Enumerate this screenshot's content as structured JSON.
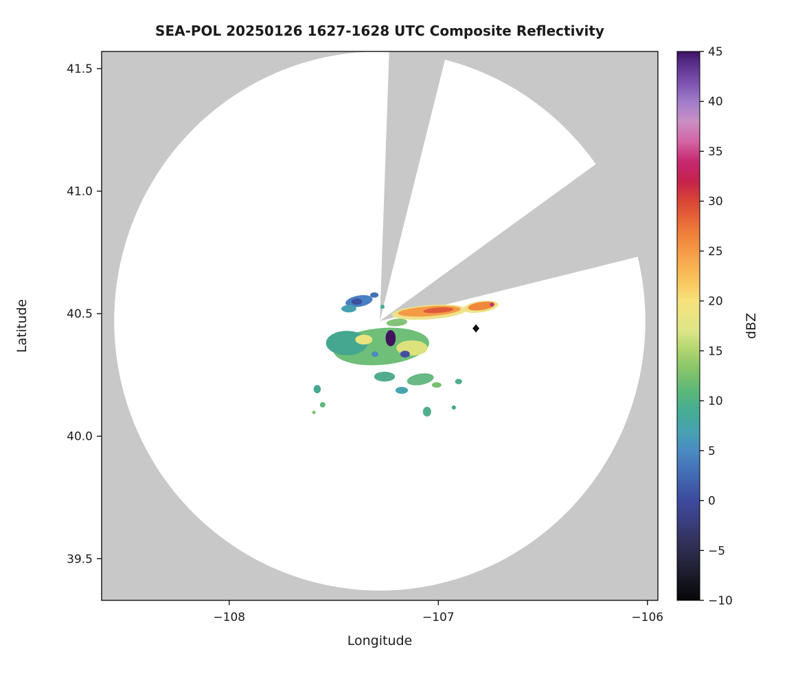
{
  "page": {
    "background": "#ffffff"
  },
  "chart_data": {
    "type": "heatmap",
    "title": "SEA-POL 20250126 1627-1628 UTC Composite Reflectivity",
    "xlabel": "Longitude",
    "ylabel": "Latitude",
    "xlim": [
      -108.61,
      -105.95
    ],
    "ylim": [
      39.33,
      41.57
    ],
    "grid": false,
    "nodata_color": "#c8c8c8",
    "coverage_color": "#ffffff",
    "xticks": [
      {
        "value": -108,
        "label": "−108"
      },
      {
        "value": -107,
        "label": "−107"
      },
      {
        "value": -106,
        "label": "−106"
      }
    ],
    "yticks": [
      {
        "value": 39.5,
        "label": "39.5"
      },
      {
        "value": 40.0,
        "label": "40.0"
      },
      {
        "value": 40.5,
        "label": "40.5"
      },
      {
        "value": 41.0,
        "label": "41.0"
      },
      {
        "value": 41.5,
        "label": "41.5"
      }
    ],
    "coverage": {
      "center_lon": -107.28,
      "center_lat": 40.47,
      "radius_lon_deg": 1.27,
      "radius_lat_deg": 1.1,
      "blocked_sectors": [
        {
          "from_az": 2,
          "to_az": 14
        },
        {
          "from_az": 54,
          "to_az": 76
        }
      ]
    },
    "station_marker": {
      "lon": -106.82,
      "lat": 40.44,
      "shape": "diamond",
      "color": "#111111"
    },
    "colorbar": {
      "label": "dBZ",
      "min": -10,
      "max": 45,
      "ticks": [
        {
          "value": -10,
          "label": "−10"
        },
        {
          "value": -5,
          "label": "−5"
        },
        {
          "value": 0,
          "label": "0"
        },
        {
          "value": 5,
          "label": "5"
        },
        {
          "value": 10,
          "label": "10"
        },
        {
          "value": 15,
          "label": "15"
        },
        {
          "value": 20,
          "label": "20"
        },
        {
          "value": 25,
          "label": "25"
        },
        {
          "value": 30,
          "label": "30"
        },
        {
          "value": 35,
          "label": "35"
        },
        {
          "value": 40,
          "label": "40"
        },
        {
          "value": 45,
          "label": "45"
        }
      ],
      "colormap": [
        {
          "v": 45,
          "color": "#3b1261"
        },
        {
          "v": 44,
          "color": "#552a85"
        },
        {
          "v": 42,
          "color": "#7a4fae"
        },
        {
          "v": 40,
          "color": "#a07cc8"
        },
        {
          "v": 38,
          "color": "#c98fc4"
        },
        {
          "v": 36,
          "color": "#d465a4"
        },
        {
          "v": 34,
          "color": "#c52a70"
        },
        {
          "v": 32,
          "color": "#c5224c"
        },
        {
          "v": 30,
          "color": "#d84636"
        },
        {
          "v": 27,
          "color": "#ee7a39"
        },
        {
          "v": 25,
          "color": "#f59b45"
        },
        {
          "v": 22,
          "color": "#f8c55e"
        },
        {
          "v": 20,
          "color": "#f7e27c"
        },
        {
          "v": 17,
          "color": "#dce689"
        },
        {
          "v": 15,
          "color": "#aed46e"
        },
        {
          "v": 13,
          "color": "#84c46a"
        },
        {
          "v": 11,
          "color": "#5cb877"
        },
        {
          "v": 9,
          "color": "#45ad93"
        },
        {
          "v": 7,
          "color": "#47a2b0"
        },
        {
          "v": 5,
          "color": "#4a8bc2"
        },
        {
          "v": 3,
          "color": "#4370b5"
        },
        {
          "v": 0,
          "color": "#3d4a9e"
        },
        {
          "v": -2,
          "color": "#3a3f80"
        },
        {
          "v": -4,
          "color": "#32325c"
        },
        {
          "v": -6,
          "color": "#262640"
        },
        {
          "v": -8,
          "color": "#161622"
        },
        {
          "v": -10,
          "color": "#070707"
        }
      ]
    },
    "echoes": [
      {
        "lon": -107.043,
        "lat": 40.506,
        "w": 0.36,
        "h": 0.058,
        "rot": -4,
        "dbz": 18,
        "color": "#eee289"
      },
      {
        "lon": -106.797,
        "lat": 40.528,
        "w": 0.17,
        "h": 0.046,
        "rot": -8,
        "dbz": 18,
        "color": "#eee289"
      },
      {
        "lon": -107.273,
        "lat": 40.366,
        "w": 0.46,
        "h": 0.15,
        "rot": -5,
        "dbz": 10,
        "color": "#6fbf78"
      },
      {
        "lon": -107.437,
        "lat": 40.38,
        "w": 0.2,
        "h": 0.1,
        "rot": 0,
        "dbz": 8,
        "color": "#45a78f"
      },
      {
        "lon": -107.126,
        "lat": 40.36,
        "w": 0.15,
        "h": 0.062,
        "rot": 0,
        "dbz": 16,
        "color": "#dde27d"
      },
      {
        "lon": -107.356,
        "lat": 40.394,
        "w": 0.082,
        "h": 0.04,
        "rot": 0,
        "dbz": 17,
        "color": "#e9e47e"
      },
      {
        "lon": -107.198,
        "lat": 40.464,
        "w": 0.1,
        "h": 0.03,
        "rot": -5,
        "dbz": 12,
        "color": "#84c27a"
      },
      {
        "lon": -107.379,
        "lat": 40.551,
        "w": 0.131,
        "h": 0.046,
        "rot": -10,
        "dbz": 4,
        "color": "#4a7fc1"
      },
      {
        "lon": -107.39,
        "lat": 40.549,
        "w": 0.05,
        "h": 0.026,
        "rot": 0,
        "dbz": 0,
        "color": "#3d4f9f"
      },
      {
        "lon": -107.428,
        "lat": 40.52,
        "w": 0.072,
        "h": 0.03,
        "rot": 0,
        "dbz": 7,
        "color": "#47a2b0"
      },
      {
        "lon": -107.306,
        "lat": 40.576,
        "w": 0.04,
        "h": 0.022,
        "rot": 0,
        "dbz": 3,
        "color": "#4370b5"
      },
      {
        "lon": -107.267,
        "lat": 40.528,
        "w": 0.02,
        "h": 0.017,
        "rot": 0,
        "dbz": 9,
        "color": "#45ad93"
      },
      {
        "lon": -107.043,
        "lat": 40.51,
        "w": 0.3,
        "h": 0.04,
        "rot": -4,
        "dbz": 25,
        "color": "#f59b45"
      },
      {
        "lon": -107.0,
        "lat": 40.514,
        "w": 0.145,
        "h": 0.022,
        "rot": -4,
        "dbz": 29,
        "color": "#e0593a"
      },
      {
        "lon": -106.794,
        "lat": 40.531,
        "w": 0.13,
        "h": 0.033,
        "rot": -8,
        "dbz": 26,
        "color": "#f0883c"
      },
      {
        "lon": -106.744,
        "lat": 40.537,
        "w": 0.02,
        "h": 0.016,
        "rot": 0,
        "dbz": 33,
        "color": "#c2356e"
      },
      {
        "lon": -107.159,
        "lat": 40.335,
        "w": 0.046,
        "h": 0.028,
        "rot": 0,
        "dbz": 1,
        "color": "#44509e"
      },
      {
        "lon": -107.303,
        "lat": 40.335,
        "w": 0.033,
        "h": 0.022,
        "rot": 0,
        "dbz": 5,
        "color": "#4a8bc2"
      },
      {
        "lon": -107.257,
        "lat": 40.243,
        "w": 0.1,
        "h": 0.04,
        "rot": 0,
        "dbz": 9,
        "color": "#52ad8d"
      },
      {
        "lon": -107.086,
        "lat": 40.232,
        "w": 0.13,
        "h": 0.046,
        "rot": -10,
        "dbz": 11,
        "color": "#68b984"
      },
      {
        "lon": -107.175,
        "lat": 40.187,
        "w": 0.06,
        "h": 0.028,
        "rot": 0,
        "dbz": 7,
        "color": "#47a2b0"
      },
      {
        "lon": -107.008,
        "lat": 40.209,
        "w": 0.046,
        "h": 0.022,
        "rot": 0,
        "dbz": 12,
        "color": "#79c06f"
      },
      {
        "lon": -107.054,
        "lat": 40.1,
        "w": 0.04,
        "h": 0.04,
        "rot": 0,
        "dbz": 9,
        "color": "#52ad8d"
      },
      {
        "lon": -107.579,
        "lat": 40.192,
        "w": 0.034,
        "h": 0.034,
        "rot": 0,
        "dbz": 8,
        "color": "#45a78f"
      },
      {
        "lon": -107.553,
        "lat": 40.128,
        "w": 0.026,
        "h": 0.022,
        "rot": 0,
        "dbz": 10,
        "color": "#5cb877"
      },
      {
        "lon": -107.595,
        "lat": 40.097,
        "w": 0.016,
        "h": 0.014,
        "rot": 0,
        "dbz": 12,
        "color": "#7cc06f"
      },
      {
        "lon": -106.903,
        "lat": 40.223,
        "w": 0.034,
        "h": 0.022,
        "rot": 0,
        "dbz": 9,
        "color": "#52ad8d"
      },
      {
        "lon": -106.926,
        "lat": 40.117,
        "w": 0.02,
        "h": 0.017,
        "rot": 0,
        "dbz": 8,
        "color": "#45a78f"
      },
      {
        "lon": -107.228,
        "lat": 40.4,
        "w": 0.048,
        "h": 0.066,
        "rot": 0,
        "dbz": 43,
        "color": "#42125c"
      }
    ]
  }
}
